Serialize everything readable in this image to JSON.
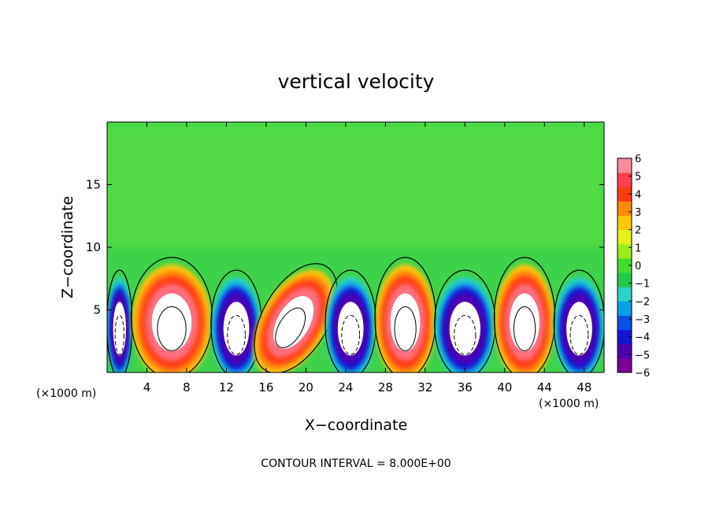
{
  "chart_data": {
    "type": "heatmap",
    "title": "vertical velocity",
    "xlabel": "X−coordinate",
    "ylabel": "Z−coordinate",
    "x_unit_left": "(×1000 m)",
    "x_unit_right": "(×1000 m)",
    "footer": "CONTOUR INTERVAL = 8.000E+00",
    "xlim": [
      0,
      50
    ],
    "ylim": [
      0,
      20
    ],
    "x_ticks": [
      4,
      8,
      12,
      16,
      20,
      24,
      28,
      32,
      36,
      40,
      44,
      48
    ],
    "y_ticks": [
      5,
      10,
      15
    ],
    "colorbar": {
      "min": -6,
      "max": 6,
      "tick_values": [
        6,
        5,
        4,
        3,
        2,
        1,
        0,
        -1,
        -2,
        -3,
        -4,
        -5,
        -6
      ],
      "tick_labels": [
        "6",
        "5",
        "4",
        "3",
        "2",
        "1",
        "0",
        "−1",
        "−2",
        "−3",
        "−4",
        "−5",
        "−6"
      ],
      "colors": [
        "#7a009a",
        "#4b00b0",
        "#1414d2",
        "#0a50e6",
        "#08a0e6",
        "#2ad2c8",
        "#22c84a",
        "#46dc2c",
        "#9cec1c",
        "#e6f01a",
        "#ffc80a",
        "#ff8a0a",
        "#ff3c14",
        "#ff4050",
        "#ff8c9c"
      ]
    },
    "cells": [
      {
        "x": [
          0.0,
          2.5
        ],
        "sign": "down",
        "peak": -16
      },
      {
        "x": [
          2.5,
          10.5
        ],
        "sign": "up",
        "peak": 24
      },
      {
        "x": [
          10.5,
          15.5
        ],
        "sign": "down",
        "peak": -14
      },
      {
        "x": [
          15.5,
          22.0
        ],
        "sign": "up",
        "peak": 12,
        "tilted": true
      },
      {
        "x": [
          22.0,
          27.0
        ],
        "sign": "down",
        "peak": -12
      },
      {
        "x": [
          27.0,
          33.0
        ],
        "sign": "up",
        "peak": 24
      },
      {
        "x": [
          33.0,
          39.0
        ],
        "sign": "down",
        "peak": -16
      },
      {
        "x": [
          39.0,
          45.0
        ],
        "sign": "up",
        "peak": 24
      },
      {
        "x": [
          45.0,
          50.0
        ],
        "sign": "down",
        "peak": -16
      }
    ]
  }
}
